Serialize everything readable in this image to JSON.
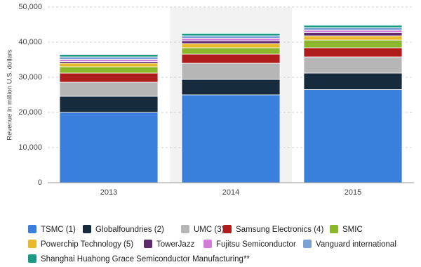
{
  "chart_data": {
    "type": "stacked-bar",
    "y_label": "Revenue in million U.S. dollars",
    "categories": [
      "2013",
      "2014",
      "2015"
    ],
    "ylim": [
      0,
      50000
    ],
    "yticks": [
      0,
      {
        "value": 10000,
        "label": "10,000"
      },
      {
        "value": 20000,
        "label": "20,000"
      },
      {
        "value": 30000,
        "label": "30,000"
      },
      {
        "value": 40000,
        "label": "40,000"
      },
      {
        "value": 50000,
        "label": "50,000"
      }
    ],
    "grid": true,
    "series": [
      {
        "name": "TSMC (1)",
        "color": "#3a7fdc",
        "values": [
          20000,
          25000,
          26500
        ]
      },
      {
        "name": "Globalfoundries (2)",
        "color": "#172b3f",
        "values": [
          4600,
          4400,
          4700
        ]
      },
      {
        "name": "UMC (3)",
        "color": "#b6b6b6",
        "values": [
          4000,
          4600,
          4600
        ]
      },
      {
        "name": "Samsung Electronics (4)",
        "color": "#b01c1c",
        "values": [
          2600,
          2600,
          2600
        ]
      },
      {
        "name": "SMIC",
        "color": "#8ab82a",
        "values": [
          1800,
          1800,
          2200
        ]
      },
      {
        "name": "Powerchip Technology (5)",
        "color": "#e7b92b",
        "values": [
          1000,
          1200,
          1200
        ]
      },
      {
        "name": "TowerJazz",
        "color": "#5e2a6e",
        "values": [
          500,
          800,
          900
        ]
      },
      {
        "name": "Fujitsu Semiconductor",
        "color": "#d07cd8",
        "values": [
          600,
          700,
          700
        ]
      },
      {
        "name": "Vanguard international",
        "color": "#7ba1d4",
        "values": [
          700,
          700,
          700
        ]
      },
      {
        "name": "Shanghai Huahong Grace Semiconductor Manufacturing**",
        "color": "#1a9a82",
        "values": [
          700,
          700,
          700
        ]
      }
    ]
  }
}
